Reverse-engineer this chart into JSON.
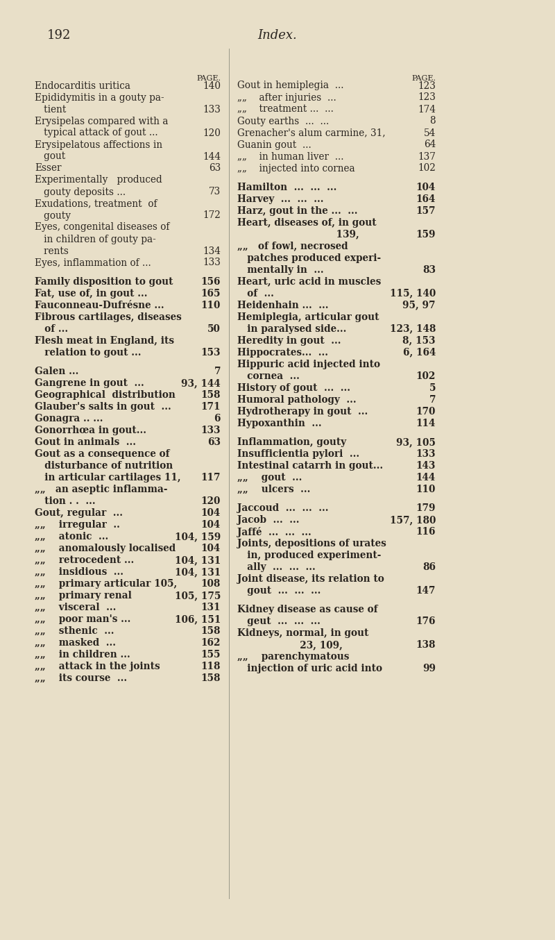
{
  "page_number": "192",
  "page_title": "Index.",
  "bg_color": "#e8dfc8",
  "text_color": "#2a2520",
  "fig_width": 8.0,
  "fig_height": 13.54,
  "dpi": 100,
  "left_entries": [
    {
      "lines": [
        "Endocarditis uritica"
      ],
      "page": "140",
      "dots": true
    },
    {
      "lines": [
        "Epididymitis in a gouty pa-",
        "   tient"
      ],
      "page": "133",
      "dots": true
    },
    {
      "lines": [
        "Erysipelas compared with a",
        "   typical attack of gout ..."
      ],
      "page": "120",
      "dots": false
    },
    {
      "lines": [
        "Erysipelatous affections in",
        "   gout"
      ],
      "page": "144",
      "dots": true
    },
    {
      "lines": [
        "Esser"
      ],
      "page": "63",
      "dots": true
    },
    {
      "lines": [
        "Experimentally   produced",
        "   gouty deposits ..."
      ],
      "page": "73",
      "dots": true
    },
    {
      "lines": [
        "Exudations, treatment  of",
        "   gouty"
      ],
      "page": "172",
      "dots": true
    },
    {
      "lines": [
        "Eyes, congenital diseases of",
        "   in children of gouty pa-",
        "   rents"
      ],
      "page": "134",
      "dots": true
    },
    {
      "lines": [
        "Eyes, inflammation of ..."
      ],
      "page": "133",
      "dots": false
    },
    {
      "lines": [
        ""
      ],
      "page": "",
      "dots": false
    },
    {
      "lines": [
        "Family disposition to gout"
      ],
      "page": "156",
      "dots": false,
      "bold": true
    },
    {
      "lines": [
        "Fat, use of, in gout ..."
      ],
      "page": "165",
      "dots": false,
      "bold": true
    },
    {
      "lines": [
        "Fauconneau-Dufrésne ..."
      ],
      "page": "110",
      "dots": false,
      "bold": true
    },
    {
      "lines": [
        "Fibrous cartilages, diseases",
        "   of ..."
      ],
      "page": "50",
      "dots": false,
      "bold": true
    },
    {
      "lines": [
        "Flesh meat in England, its",
        "   relation to gout ..."
      ],
      "page": "153",
      "dots": false,
      "bold": true
    },
    {
      "lines": [
        ""
      ],
      "page": "",
      "dots": false
    },
    {
      "lines": [
        "Galen ..."
      ],
      "page": "7",
      "dots": false,
      "bold": true
    },
    {
      "lines": [
        "Gangrene in gout  ... "
      ],
      "page": "93, 144",
      "dots": false,
      "bold": true
    },
    {
      "lines": [
        "Geographical  distribution"
      ],
      "page": "158",
      "dots": false,
      "bold": true
    },
    {
      "lines": [
        "Glauber's salts in gout  ..."
      ],
      "page": "171",
      "dots": false,
      "bold": true
    },
    {
      "lines": [
        "Gonagra .. ..."
      ],
      "page": "6",
      "dots": false,
      "bold": true
    },
    {
      "lines": [
        "Gonorrhœa in gout..."
      ],
      "page": "133",
      "dots": false,
      "bold": true
    },
    {
      "lines": [
        "Gout in animals  ..."
      ],
      "page": "63",
      "dots": false,
      "bold": true
    },
    {
      "lines": [
        "Gout as a consequence of",
        "   disturbance of nutrition",
        "   in articular cartilages 11,"
      ],
      "page": "117",
      "dots": false,
      "bold": true
    },
    {
      "lines": [
        "„„   an aseptic inflamma-",
        "   tion . .  ..."
      ],
      "page": "120",
      "dots": false,
      "bold": true
    },
    {
      "lines": [
        "Gout, regular  ..."
      ],
      "page": "104",
      "dots": false,
      "bold": true
    },
    {
      "lines": [
        "„„    irregular  .."
      ],
      "page": "104",
      "dots": false,
      "bold": true
    },
    {
      "lines": [
        "„„    atonic  ..."
      ],
      "page": "104, 159",
      "dots": false,
      "bold": true
    },
    {
      "lines": [
        "„„    anomalously localised"
      ],
      "page": "104",
      "dots": false,
      "bold": true
    },
    {
      "lines": [
        "„„    retrocedent ..."
      ],
      "page": "104, 131",
      "dots": false,
      "bold": true
    },
    {
      "lines": [
        "„„    insidious  ..."
      ],
      "page": "104, 131",
      "dots": false,
      "bold": true
    },
    {
      "lines": [
        "„„    primary articular 105,"
      ],
      "page": "108",
      "dots": false,
      "bold": true
    },
    {
      "lines": [
        "„„    primary renal"
      ],
      "page": "105, 175",
      "dots": false,
      "bold": true
    },
    {
      "lines": [
        "„„    visceral  ..."
      ],
      "page": "131",
      "dots": false,
      "bold": true
    },
    {
      "lines": [
        "„„    poor man's ..."
      ],
      "page": "106, 151",
      "dots": false,
      "bold": true
    },
    {
      "lines": [
        "„„    sthenic  ..."
      ],
      "page": "158",
      "dots": false,
      "bold": true
    },
    {
      "lines": [
        "„„    masked  ..."
      ],
      "page": "162",
      "dots": false,
      "bold": true
    },
    {
      "lines": [
        "„„    in children ..."
      ],
      "page": "155",
      "dots": false,
      "bold": true
    },
    {
      "lines": [
        "„„    attack in the joints"
      ],
      "page": "118",
      "dots": false,
      "bold": true
    },
    {
      "lines": [
        "„„    its course  ..."
      ],
      "page": "158",
      "dots": false,
      "bold": true
    }
  ],
  "right_entries": [
    {
      "lines": [
        "Gout in hemiplegia  ..."
      ],
      "page": "123",
      "dots": false
    },
    {
      "lines": [
        "„„    after injuries  ..."
      ],
      "page": "123",
      "dots": false
    },
    {
      "lines": [
        "„„    treatment ...  ..."
      ],
      "page": "174",
      "dots": false
    },
    {
      "lines": [
        "Gouty earths  ...  ..."
      ],
      "page": "8",
      "dots": false
    },
    {
      "lines": [
        "Grenacher's alum carmine, 31,"
      ],
      "page": "54",
      "dots": false
    },
    {
      "lines": [
        "Guanin gout  ..."
      ],
      "page": "64",
      "dots": false
    },
    {
      "lines": [
        "„„    in human liver  ..."
      ],
      "page": "137",
      "dots": false
    },
    {
      "lines": [
        "„„    injected into cornea"
      ],
      "page": "102",
      "dots": false
    },
    {
      "lines": [
        ""
      ],
      "page": "",
      "dots": false
    },
    {
      "lines": [
        "Hamilton  ...  ...  ..."
      ],
      "page": "104",
      "dots": false,
      "bold": true
    },
    {
      "lines": [
        "Harvey  ...  ...  ..."
      ],
      "page": "164",
      "dots": false,
      "bold": true
    },
    {
      "lines": [
        "Harz, gout in the ...  ..."
      ],
      "page": "157",
      "dots": false,
      "bold": true
    },
    {
      "lines": [
        "Heart, diseases of, in gout",
        "                              139,"
      ],
      "page": "159",
      "dots": false,
      "bold": true
    },
    {
      "lines": [
        "„„   of fowl, necrosed",
        "   patches produced experi-",
        "   mentally in  ..."
      ],
      "page": "83",
      "dots": false,
      "bold": true
    },
    {
      "lines": [
        "Heart, uric acid in muscles",
        "   of  ..."
      ],
      "page": "115, 140",
      "dots": false,
      "bold": true
    },
    {
      "lines": [
        "Heidenhain ...  ..."
      ],
      "page": "95, 97",
      "dots": false,
      "bold": true
    },
    {
      "lines": [
        "Hemiplegia, articular gout",
        "   in paralysed side..."
      ],
      "page": "123, 148",
      "dots": false,
      "bold": true
    },
    {
      "lines": [
        "Heredity in gout  ..."
      ],
      "page": "8, 153",
      "dots": false,
      "bold": true
    },
    {
      "lines": [
        "Hippocrates...  ..."
      ],
      "page": "6, 164",
      "dots": false,
      "bold": true
    },
    {
      "lines": [
        "Hippuric acid injected into",
        "   cornea  ..."
      ],
      "page": "102",
      "dots": false,
      "bold": true
    },
    {
      "lines": [
        "History of gout  ...  ..."
      ],
      "page": "5",
      "dots": false,
      "bold": true
    },
    {
      "lines": [
        "Humoral pathology  ..."
      ],
      "page": "7",
      "dots": false,
      "bold": true
    },
    {
      "lines": [
        "Hydrotherapy in gout  ..."
      ],
      "page": "170",
      "dots": false,
      "bold": true
    },
    {
      "lines": [
        "Hypoxanthin  ..."
      ],
      "page": "114",
      "dots": false,
      "bold": true
    },
    {
      "lines": [
        ""
      ],
      "page": "",
      "dots": false
    },
    {
      "lines": [
        "Inflammation, gouty"
      ],
      "page": "93, 105",
      "dots": false,
      "bold": true
    },
    {
      "lines": [
        "Insufficientia pylori  ..."
      ],
      "page": "133",
      "dots": false,
      "bold": true
    },
    {
      "lines": [
        "Intestinal catarrh in gout..."
      ],
      "page": "143",
      "dots": false,
      "bold": true
    },
    {
      "lines": [
        "„„    gout  ..."
      ],
      "page": "144",
      "dots": false,
      "bold": true
    },
    {
      "lines": [
        "„„    ulcers  ..."
      ],
      "page": "110",
      "dots": false,
      "bold": true
    },
    {
      "lines": [
        ""
      ],
      "page": "",
      "dots": false
    },
    {
      "lines": [
        "Jaccoud  ...  ...  ..."
      ],
      "page": "179",
      "dots": false,
      "bold": true
    },
    {
      "lines": [
        "Jacob  ...  ..."
      ],
      "page": "157, 180",
      "dots": false,
      "bold": true
    },
    {
      "lines": [
        "Jaffé  ...  ...  ..."
      ],
      "page": "116",
      "dots": false,
      "bold": true
    },
    {
      "lines": [
        "Joints, depositions of urates",
        "   in, produced experiment-",
        "   ally  ...  ...  ..."
      ],
      "page": "86",
      "dots": false,
      "bold": true
    },
    {
      "lines": [
        "Joint disease, its relation to",
        "   gout  ...  ...  ..."
      ],
      "page": "147",
      "dots": false,
      "bold": true
    },
    {
      "lines": [
        ""
      ],
      "page": "",
      "dots": false
    },
    {
      "lines": [
        "Kidney disease as cause of",
        "   geut  ...  ...  ..."
      ],
      "page": "176",
      "dots": false,
      "bold": true
    },
    {
      "lines": [
        "Kidneys, normal, in gout",
        "                   23, 109,"
      ],
      "page": "138",
      "dots": false,
      "bold": true
    },
    {
      "lines": [
        "„„    parenchymatous",
        "   injection of uric acid into"
      ],
      "page": "99",
      "dots": false,
      "bold": true
    }
  ]
}
